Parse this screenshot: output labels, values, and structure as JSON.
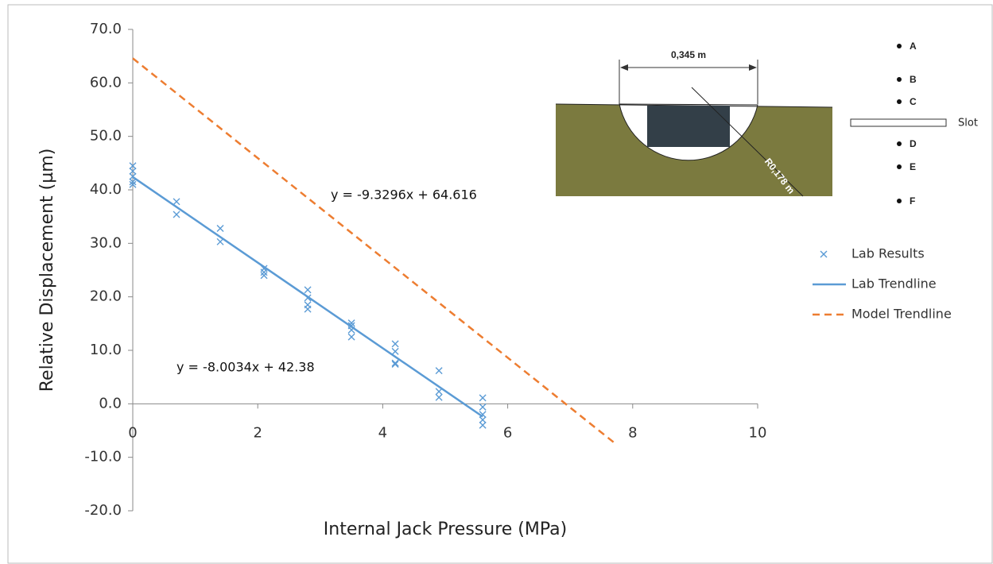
{
  "chart_data": {
    "type": "scatter",
    "xlabel": "Internal  Jack Pressure (MPa)",
    "ylabel": "Relative Displacement (µm)",
    "xlim": [
      0,
      10
    ],
    "xticks": [
      0,
      2,
      4,
      6,
      8,
      10
    ],
    "ylim": [
      -20,
      70
    ],
    "yticks": [
      {
        "value": -20,
        "label": "-20.0"
      },
      {
        "value": -10,
        "label": "-10.0"
      },
      {
        "value": 0,
        "label": "0.0"
      },
      {
        "value": 10,
        "label": "10.0"
      },
      {
        "value": 20,
        "label": "20.0"
      },
      {
        "value": 30,
        "label": "30.0"
      },
      {
        "value": 40,
        "label": "40.0"
      },
      {
        "value": 50,
        "label": "50.0"
      },
      {
        "value": 60,
        "label": "60.0"
      },
      {
        "value": 70,
        "label": "70.0"
      }
    ],
    "legend": "right",
    "series": [
      {
        "name": "Lab Results",
        "color": "#5b9bd5",
        "mode": "markers",
        "x": [
          0,
          0,
          0,
          0,
          0,
          0.7,
          0.7,
          1.4,
          1.4,
          2.1,
          2.1,
          2.1,
          2.8,
          2.8,
          2.8,
          2.8,
          3.5,
          3.5,
          3.5,
          3.5,
          4.2,
          4.2,
          4.2,
          4.2,
          4.9,
          4.9,
          4.9,
          5.6,
          5.6,
          5.6,
          5.6,
          5.6
        ],
        "values": [
          44.5,
          43.5,
          42.5,
          41.5,
          41.0,
          37.8,
          35.4,
          32.8,
          30.3,
          25.3,
          24.6,
          24.0,
          21.3,
          19.8,
          18.5,
          17.7,
          15.1,
          14.6,
          13.8,
          12.5,
          11.2,
          9.8,
          7.6,
          7.4,
          6.2,
          2.3,
          1.2,
          1.1,
          -0.6,
          -2.0,
          -3.0,
          -4.0
        ]
      },
      {
        "name": "Lab Trendline",
        "color": "#5b9bd5",
        "mode": "solid",
        "x": [
          0,
          5.6
        ],
        "values": [
          42.4,
          -2.4
        ]
      },
      {
        "name": "Model Trendline",
        "color": "#ed7d31",
        "mode": "dashed",
        "x": [
          0,
          7.75
        ],
        "values": [
          64.6,
          -7.7
        ]
      }
    ],
    "annotations": [
      "y = -9.3296x + 64.616",
      "y = -8.0034x + 42.38"
    ]
  },
  "inset": {
    "width_label": "0,345 m",
    "radius_label": "R0,178 m",
    "points": [
      "A",
      "B",
      "C",
      "D",
      "E",
      "F"
    ],
    "slot_label": "Slot"
  }
}
